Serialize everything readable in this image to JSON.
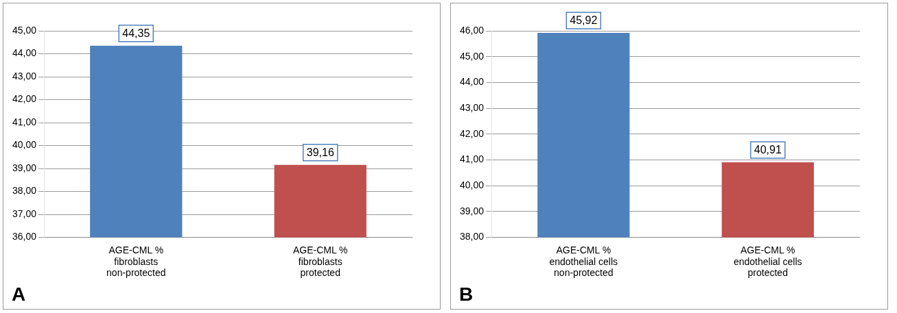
{
  "chart_data": [
    {
      "type": "bar",
      "categories": [
        "AGE-CML %\nfibroblasts\nnon-protected",
        "AGE-CML %\nfibroblasts\nprotected"
      ],
      "colors": [
        "#4f81bd",
        "#c0504d"
      ],
      "values": [
        44.35,
        39.16
      ],
      "value_labels": [
        "44,35",
        "39,16"
      ],
      "ylim": [
        36,
        45
      ],
      "yticks": [
        {
          "value": 36,
          "label": "36,00"
        },
        {
          "value": 37,
          "label": "37,00"
        },
        {
          "value": 38,
          "label": "38,00"
        },
        {
          "value": 39,
          "label": "39,00"
        },
        {
          "value": 40,
          "label": "40,00"
        },
        {
          "value": 41,
          "label": "41,00"
        },
        {
          "value": 42,
          "label": "42,00"
        },
        {
          "value": 43,
          "label": "43,00"
        },
        {
          "value": 44,
          "label": "44,00"
        },
        {
          "value": 45,
          "label": "45,00"
        }
      ],
      "grid": "y",
      "annotations": [
        "A"
      ]
    },
    {
      "type": "bar",
      "categories": [
        "AGE-CML %\nendothelial cells\nnon-protected",
        "AGE-CML %\nendothelial cells\nprotected"
      ],
      "colors": [
        "#4f81bd",
        "#c0504d"
      ],
      "values": [
        45.92,
        40.91
      ],
      "value_labels": [
        "45,92",
        "40,91"
      ],
      "ylim": [
        38,
        46
      ],
      "yticks": [
        {
          "value": 38,
          "label": "38,00"
        },
        {
          "value": 39,
          "label": "39,00"
        },
        {
          "value": 40,
          "label": "40,00"
        },
        {
          "value": 41,
          "label": "41,00"
        },
        {
          "value": 42,
          "label": "42,00"
        },
        {
          "value": 43,
          "label": "43,00"
        },
        {
          "value": 44,
          "label": "44,00"
        },
        {
          "value": 45,
          "label": "45,00"
        },
        {
          "value": 46,
          "label": "46,00"
        }
      ],
      "grid": "y",
      "annotations": [
        "B"
      ]
    }
  ]
}
